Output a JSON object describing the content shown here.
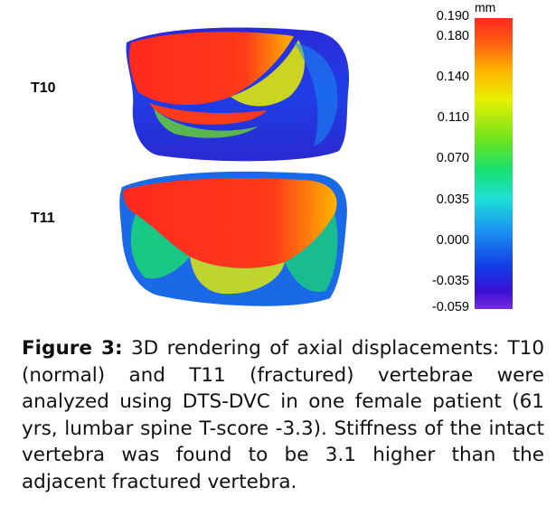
{
  "figure": {
    "vertebra_labels": {
      "upper": "T10",
      "lower": "T11"
    },
    "colorbar": {
      "unit": "mm",
      "ticks": [
        "0.190",
        "0.180",
        "0.140",
        "0.110",
        "0.070",
        "0.035",
        "0.000",
        "-0.035",
        "-0.059"
      ],
      "colors": {
        "max": "#ff2a1e",
        "high": "#ffb400",
        "mid": "#19e06c",
        "low": "#1a8cf2",
        "min": "#7a2adf"
      }
    }
  },
  "caption": {
    "label": "Figure 3:",
    "text": " 3D rendering of axial displacements: T10 (normal) and T11 (fractured) vertebrae were analyzed using DTS-DVC in one female patient (61 yrs, lumbar spine T-score -3.3). Stiffness of the intact vertebra was found to be 3.1 higher than the adjacent fractured vertebra."
  }
}
